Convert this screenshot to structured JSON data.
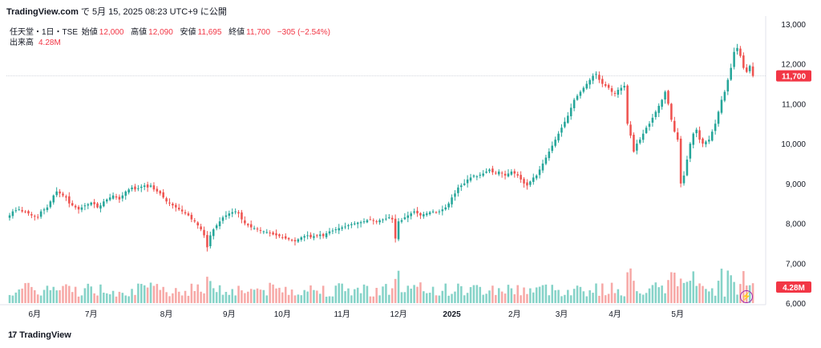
{
  "header": {
    "source": "TradingView.com",
    "date_prefix": "で",
    "date": "5月 15, 2025 08:23 UTC+9",
    "date_suffix": "に公開"
  },
  "legend": {
    "symbol": "任天堂・1日・TSE",
    "open_label": "始値",
    "open": "12,000",
    "high_label": "高値",
    "high": "12,090",
    "low_label": "安値",
    "low": "11,695",
    "close_label": "終値",
    "close": "11,700",
    "change": "−305 (−2.54%)",
    "volume_label": "出来高",
    "volume": "4.28M"
  },
  "price_tag": "11,700",
  "volume_tag": "4.28M",
  "footer": {
    "brand": "TradingView"
  },
  "colors": {
    "up": "#26a69a",
    "down": "#ef5350",
    "up_vol": "#86d3c8",
    "down_vol": "#f7a9a7",
    "tag": "#f23645"
  },
  "chart_data": {
    "type": "candlestick",
    "y_axis": {
      "ticks": [
        "6,000",
        "7,000",
        "8,000",
        "9,000",
        "10,000",
        "11,000",
        "12,000",
        "13,000"
      ],
      "range": [
        6000,
        13000
      ]
    },
    "x_axis": {
      "ticks": [
        "6月",
        "7月",
        "8月",
        "9月",
        "10月",
        "11月",
        "12月",
        "2025",
        "2月",
        "3月",
        "4月",
        "5月"
      ]
    },
    "last_price": 11700,
    "close": [
      8200,
      8300,
      8330,
      8350,
      8300,
      8280,
      8250,
      8200,
      8180,
      8150,
      8300,
      8350,
      8400,
      8550,
      8700,
      8800,
      8750,
      8700,
      8650,
      8500,
      8450,
      8400,
      8350,
      8400,
      8450,
      8480,
      8520,
      8480,
      8400,
      8450,
      8550,
      8600,
      8650,
      8700,
      8650,
      8600,
      8700,
      8800,
      8850,
      8900,
      8850,
      8880,
      8920,
      8950,
      8900,
      8950,
      8850,
      8800,
      8750,
      8650,
      8550,
      8500,
      8450,
      8400,
      8350,
      8300,
      8250,
      8200,
      8100,
      8050,
      7950,
      7850,
      7700,
      7400,
      7700,
      7850,
      7950,
      8050,
      8150,
      8200,
      8250,
      8280,
      8300,
      8250,
      8100,
      8000,
      7950,
      7900,
      7880,
      7850,
      7820,
      7800,
      7780,
      7750,
      7720,
      7700,
      7680,
      7650,
      7620,
      7600,
      7580,
      7550,
      7600,
      7650,
      7680,
      7700,
      7650,
      7680,
      7700,
      7720,
      7680,
      7750,
      7800,
      7820,
      7850,
      7880,
      7900,
      7920,
      7950,
      7980,
      8000,
      8020,
      8030,
      8050,
      8080,
      8100,
      8080,
      8050,
      8080,
      8100,
      8120,
      8150,
      8100,
      7620,
      8050,
      8080,
      8150,
      8200,
      8250,
      8300,
      8250,
      8200,
      8230,
      8250,
      8280,
      8300,
      8280,
      8300,
      8350,
      8400,
      8500,
      8650,
      8750,
      8900,
      8950,
      9000,
      9100,
      9150,
      9200,
      9180,
      9220,
      9250,
      9300,
      9350,
      9280,
      9250,
      9300,
      9250,
      9200,
      9250,
      9300,
      9250,
      9200,
      9100,
      9000,
      8950,
      9050,
      9150,
      9200,
      9350,
      9500,
      9650,
      9800,
      9950,
      10100,
      10250,
      10400,
      10550,
      10700,
      10900,
      11100,
      11200,
      11300,
      11400,
      11500,
      11600,
      11700,
      11750,
      11600,
      11500,
      11450,
      11400,
      11300,
      11250,
      11350,
      11400,
      11450,
      10500,
      10200,
      9800,
      10000,
      10100,
      10250,
      10400,
      10500,
      10650,
      10800,
      10950,
      11100,
      11300,
      11000,
      10600,
      10300,
      10100,
      9000,
      9200,
      9600,
      10000,
      10250,
      10350,
      10100,
      10000,
      10050,
      10100,
      10300,
      10500,
      10800,
      11100,
      11300,
      11600,
      11900,
      12300,
      12400,
      12200,
      11900,
      11800,
      11950,
      11700
    ],
    "volume_range": [
      0,
      10.0
    ],
    "volume_note": "M"
  }
}
